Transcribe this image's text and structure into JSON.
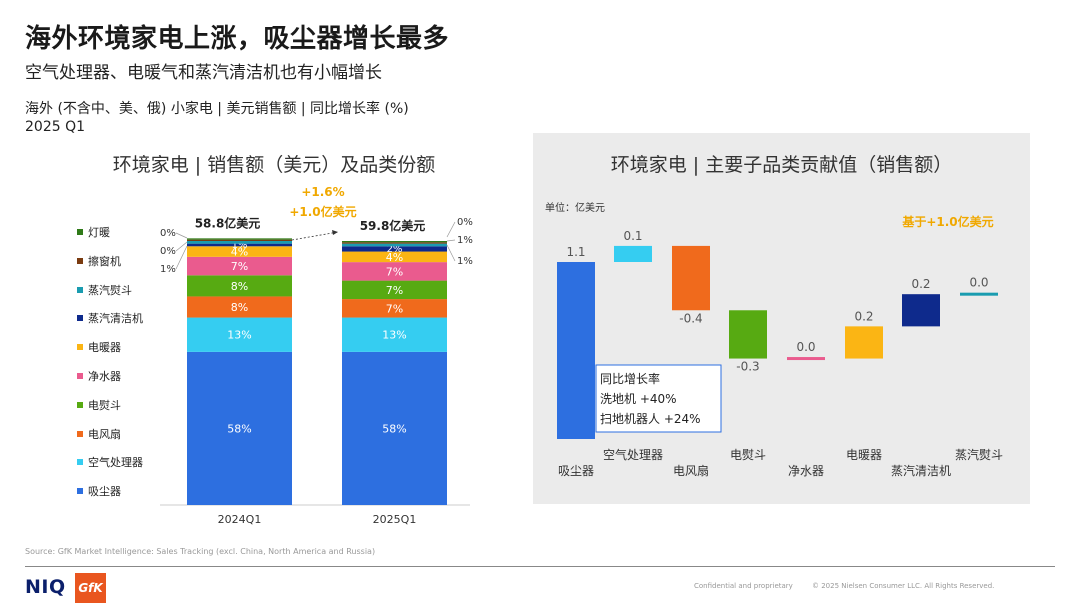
{
  "header": {
    "title": "海外环境家电上涨，吸尘器增长最多",
    "subtitle": "空气处理器、电暖气和蒸汽清洁机也有小幅增长",
    "scope_line1": "海外 (不含中、美、俄) 小家电 | 美元销售额 | 同比增长率 (%)",
    "scope_line2": "2025 Q1"
  },
  "left_chart_title": "环境家电 | 销售额（美元）及品类份额",
  "right_chart_title": "环境家电 | 主要子品类贡献值（销售额）",
  "colors": {
    "吸尘器": "#2d6fe0",
    "空气处理器": "#35cdf1",
    "电风扇": "#f06a1c",
    "电熨斗": "#57aa12",
    "净水器": "#ea5b8e",
    "电暖器": "#fbb514",
    "蒸汽清洁机": "#0e2a8c",
    "蒸汽熨斗": "#1a9cb0",
    "擦窗机": "#7a3b10",
    "灯暖": "#2f7a18",
    "growth_text": "#f0a800"
  },
  "chart_data": [
    {
      "type": "bar",
      "stacked": true,
      "title": "环境家电 | 销售额（美元）及品类份额",
      "categories": [
        "2024Q1",
        "2025Q1"
      ],
      "totals": [
        "58.8亿美元",
        "59.8亿美元"
      ],
      "growth_labels": [
        "+1.6%",
        "+1.0亿美元"
      ],
      "ylim": [
        0,
        100
      ],
      "series": [
        {
          "name": "吸尘器",
          "values": [
            58,
            58
          ],
          "labels": [
            "58%",
            "58%"
          ]
        },
        {
          "name": "空气处理器",
          "values": [
            13,
            13
          ],
          "labels": [
            "13%",
            "13%"
          ]
        },
        {
          "name": "电风扇",
          "values": [
            8,
            7
          ],
          "labels": [
            "8%",
            "7%"
          ]
        },
        {
          "name": "电熨斗",
          "values": [
            8,
            7
          ],
          "labels": [
            "8%",
            "7%"
          ]
        },
        {
          "name": "净水器",
          "values": [
            7,
            7
          ],
          "labels": [
            "7%",
            "7%"
          ]
        },
        {
          "name": "电暖器",
          "values": [
            4,
            4
          ],
          "labels": [
            "4%",
            "4%"
          ]
        },
        {
          "name": "蒸汽清洁机",
          "values": [
            1,
            2
          ],
          "labels": [
            "1%",
            "2%"
          ]
        },
        {
          "name": "蒸汽熨斗",
          "values": [
            1,
            1
          ],
          "labels": [
            "1%",
            "1%"
          ]
        },
        {
          "name": "擦窗机",
          "values": [
            0,
            0
          ],
          "labels": [
            "0%",
            "0%"
          ]
        },
        {
          "name": "灯暖",
          "values": [
            0,
            0
          ],
          "labels": [
            "0%",
            "0%"
          ]
        }
      ],
      "legend": [
        "灯暖",
        "擦窗机",
        "蒸汽熨斗",
        "蒸汽清洁机",
        "电暖器",
        "净水器",
        "电熨斗",
        "电风扇",
        "空气处理器",
        "吸尘器"
      ],
      "outside_labels": {
        "2024Q1": [
          "0%",
          "0%",
          "1%"
        ],
        "2025Q1": [
          "0%",
          "1%",
          "1%"
        ]
      }
    },
    {
      "type": "bar",
      "waterfall": true,
      "title": "环境家电 | 主要子品类贡献值（销售额）",
      "unit": "单位：亿美元",
      "annotation": "基于+1.0亿美元",
      "categories": [
        "吸尘器",
        "空气处理器",
        "电风扇",
        "电熨斗",
        "净水器",
        "电暖器",
        "蒸汽清洁机",
        "蒸汽熨斗"
      ],
      "values": [
        1.1,
        0.1,
        -0.4,
        -0.3,
        0.0,
        0.2,
        0.2,
        0.0
      ],
      "value_labels": [
        "1.1",
        "0.1",
        "-0.4",
        "-0.3",
        "0.0",
        "0.2",
        "0.2",
        "0.0"
      ],
      "callout": [
        "同比增长率",
        "洗地机 +40%",
        "扫地机器人 +24%"
      ]
    }
  ],
  "footer": {
    "source": "Source: GfK Market Intelligence: Sales Tracking (excl. China, North America and Russia)",
    "niq": "NIQ",
    "gfk": "GfK",
    "confidential": "Confidential and proprietary",
    "copyright": "© 2025 Nielsen Consumer LLC. All Rights Reserved."
  }
}
